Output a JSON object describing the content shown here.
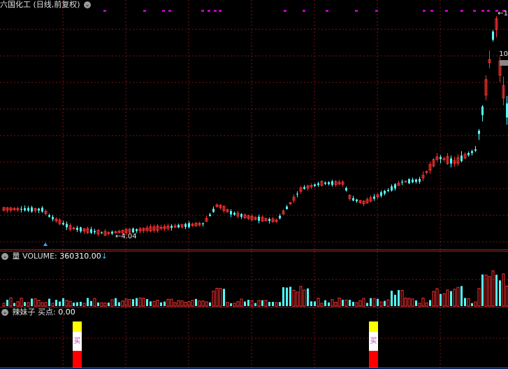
{
  "stock": {
    "title": "六国化工 (日线,前复权)"
  },
  "price_labels": {
    "high": "←1",
    "low": "←4.04",
    "current": "10"
  },
  "volume": {
    "label": "量 VOLUME:",
    "value": "360310.00",
    "arrow": "↓"
  },
  "indicator": {
    "label": "辣妹子 买点:",
    "value": "0.00",
    "buy_glyph": "买"
  },
  "colors": {
    "up": "#ff3232",
    "down": "#54ffff",
    "grid": "#7a1515",
    "marker": "#c000c0"
  },
  "chart_data": [
    {
      "type": "candlestick",
      "title": "六国化工 (日线,前复权)",
      "annotations": [
        "←1 (high)",
        "←4.04 (low)"
      ],
      "grid": true
    },
    {
      "type": "bar",
      "title": "量 VOLUME: 360310.00"
    },
    {
      "type": "bar",
      "title": "辣妹子 买点: 0.00",
      "values": [
        0,
        1,
        0,
        1,
        0
      ]
    }
  ]
}
